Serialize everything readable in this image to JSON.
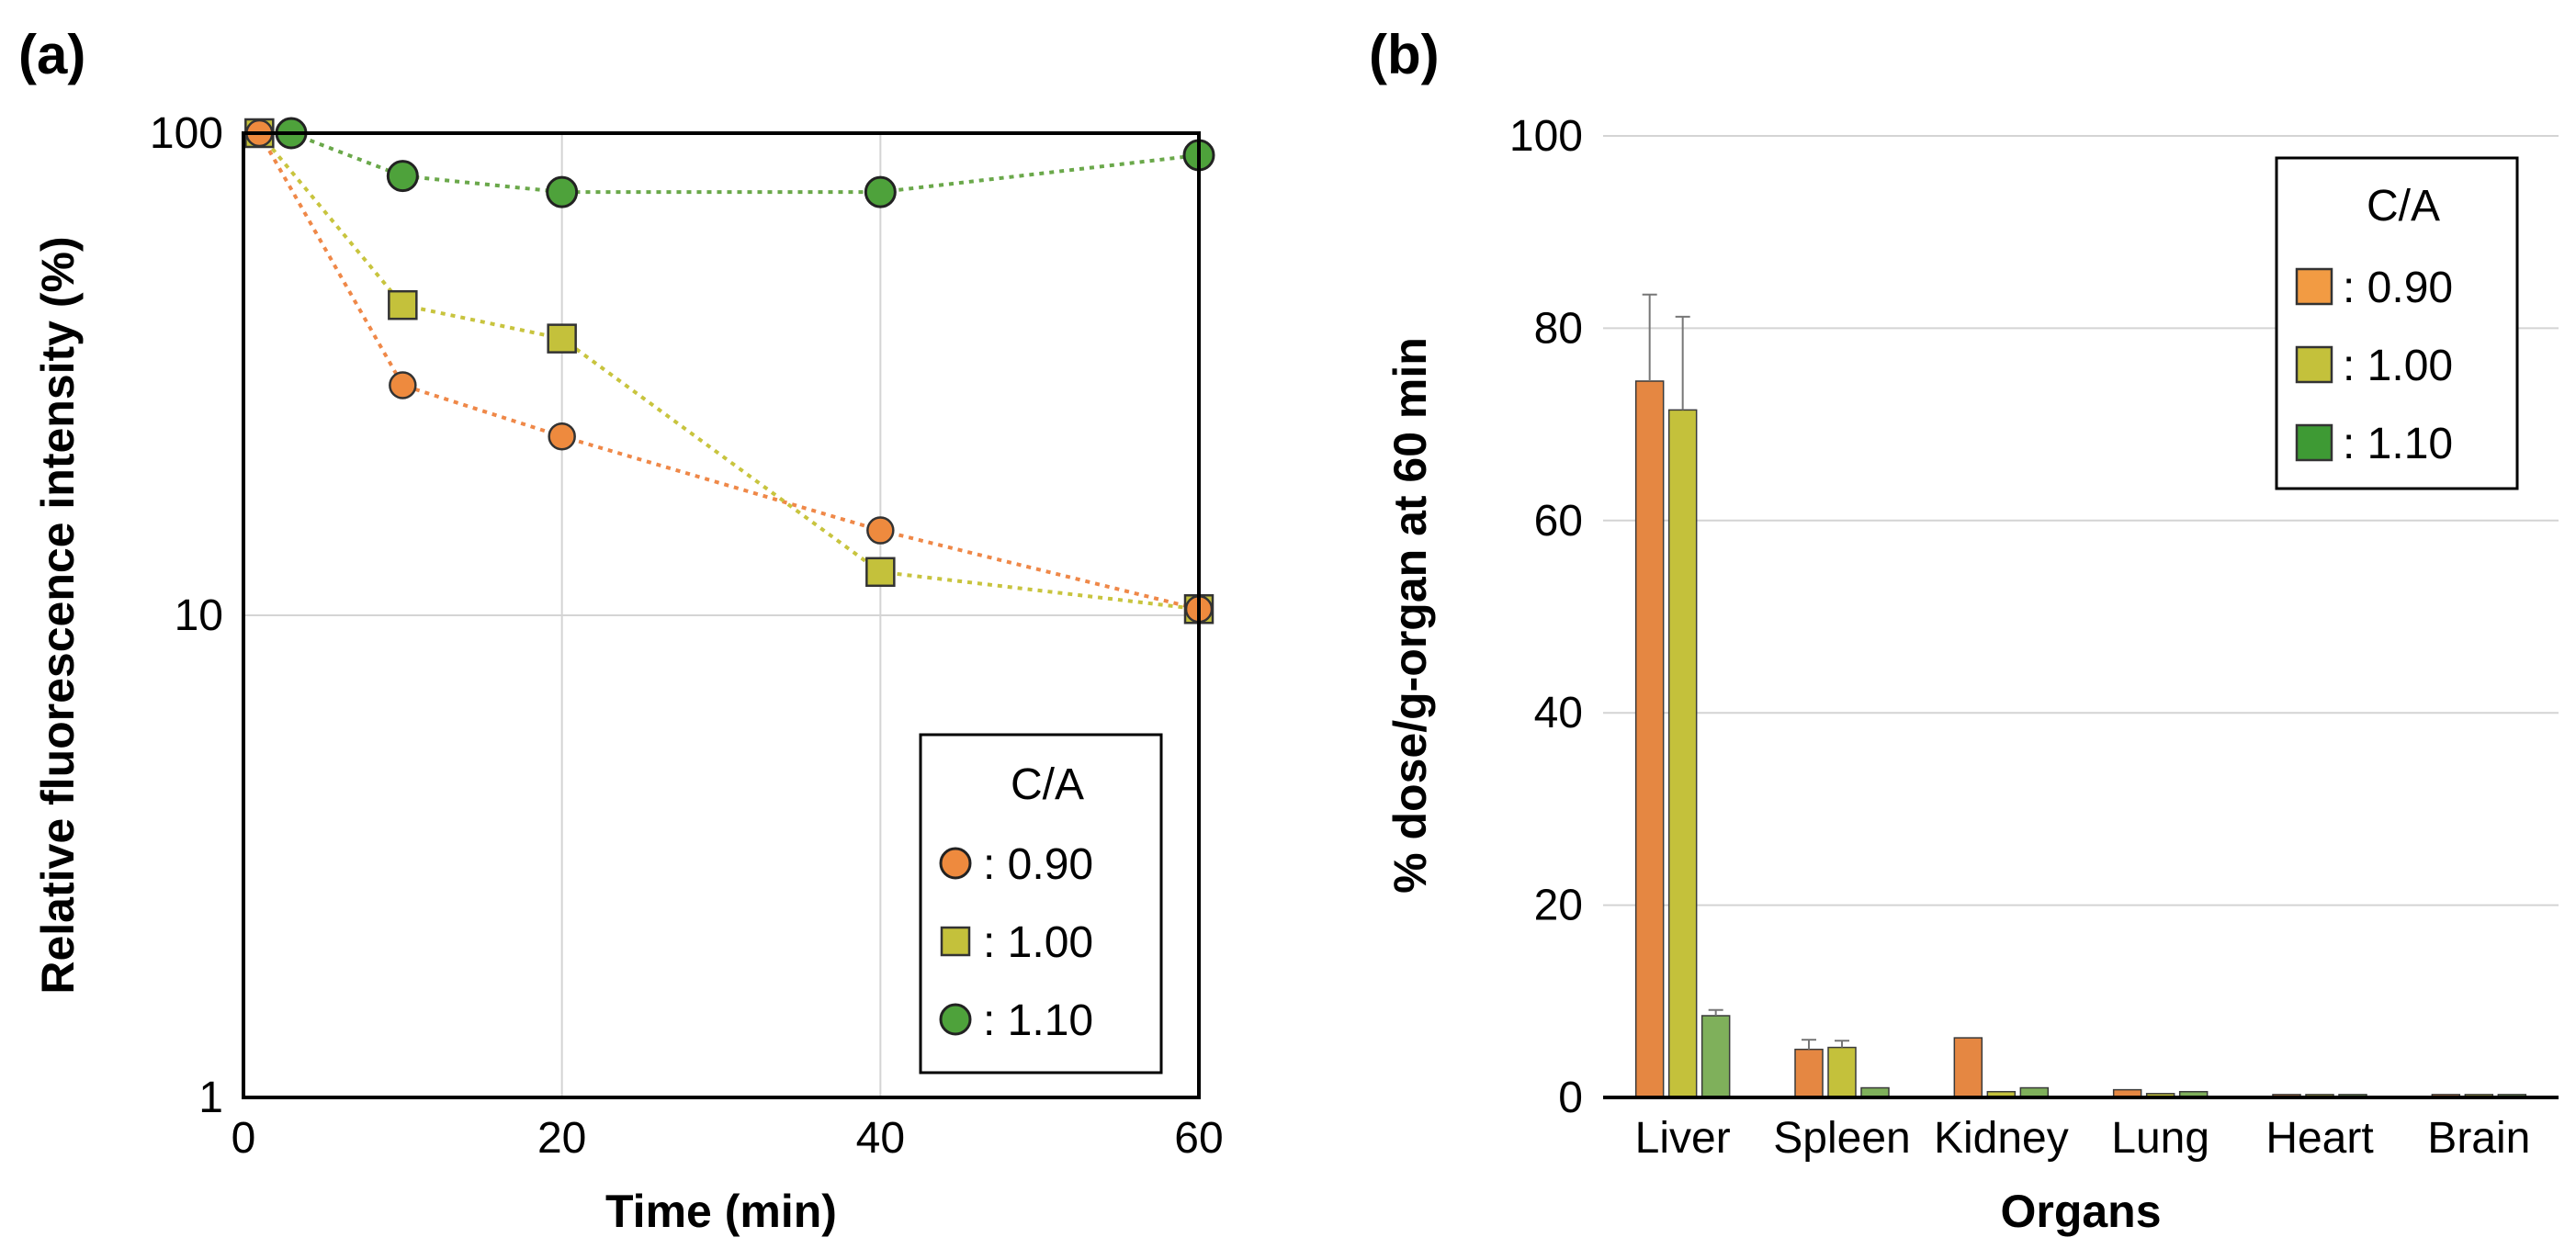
{
  "chart_data": [
    {
      "panel_label": "(a)",
      "type": "line",
      "scale": "log",
      "xlabel": "Time (min)",
      "ylabel": "Relative fluorescence intensity (%)",
      "xlim": [
        0,
        60
      ],
      "ylim": [
        1,
        100
      ],
      "x_ticks": [
        "0",
        "20",
        "40",
        "60"
      ],
      "y_ticks": [
        "1",
        "10",
        "100"
      ],
      "grid": true,
      "legend": {
        "title": "C/A",
        "position": "bottom-right",
        "entries": [
          ": 0.90",
          ": 1.00",
          ": 1.10"
        ]
      },
      "series": [
        {
          "name": "0.90",
          "label": ": 0.90",
          "marker": "circle-small",
          "color": "#ee8a3e",
          "line_color": "#ef8848",
          "x": [
            1,
            10,
            20,
            40,
            60
          ],
          "y": [
            100,
            30,
            23.5,
            15,
            10.3
          ]
        },
        {
          "name": "1.00",
          "label": ": 1.00",
          "marker": "square",
          "color": "#c4c13b",
          "line_color": "#c8c43e",
          "x": [
            1,
            10,
            20,
            40,
            60
          ],
          "y": [
            100,
            44,
            37.5,
            12.3,
            10.3
          ]
        },
        {
          "name": "1.10",
          "label": ": 1.10",
          "marker": "circle",
          "color": "#4ea23b",
          "line_color": "#6aa84a",
          "x": [
            3,
            10,
            20,
            40,
            60
          ],
          "y": [
            100,
            81.5,
            75.5,
            75.5,
            90
          ]
        }
      ]
    },
    {
      "panel_label": "(b)",
      "type": "bar",
      "xlabel": "Organs",
      "ylabel": "% dose/g-organ at  60 min",
      "ylim": [
        0,
        100
      ],
      "y_ticks": [
        "0",
        "20",
        "40",
        "60",
        "80",
        "100"
      ],
      "categories": [
        "Liver",
        "Spleen",
        "Kidney",
        "Lung",
        "Heart",
        "Brain"
      ],
      "grid": true,
      "legend": {
        "title": "C/A",
        "position": "top-right",
        "entries": [
          ": 0.90",
          ": 1.00",
          ": 1.10"
        ]
      },
      "series": [
        {
          "name": "0.90",
          "label": ": 0.90",
          "color": "#e58742",
          "legend_color": "#f29b43",
          "values": [
            74.5,
            5,
            6.2,
            0.8,
            0.3,
            0.3
          ],
          "errors": [
            9,
            1,
            0,
            0,
            0,
            0
          ]
        },
        {
          "name": "1.00",
          "label": ": 1.00",
          "color": "#c4c13b",
          "legend_color": "#c4c13b",
          "values": [
            71.5,
            5.2,
            0.6,
            0.4,
            0.3,
            0.3
          ],
          "errors": [
            9.7,
            0.7,
            0,
            0,
            0,
            0
          ]
        },
        {
          "name": "1.10",
          "label": ": 1.10",
          "color": "#7fb05b",
          "legend_color": "#3e9a34",
          "values": [
            8.5,
            1,
            1,
            0.6,
            0.3,
            0.3
          ],
          "errors": [
            0.6,
            0,
            0,
            0,
            0,
            0
          ]
        }
      ]
    }
  ]
}
